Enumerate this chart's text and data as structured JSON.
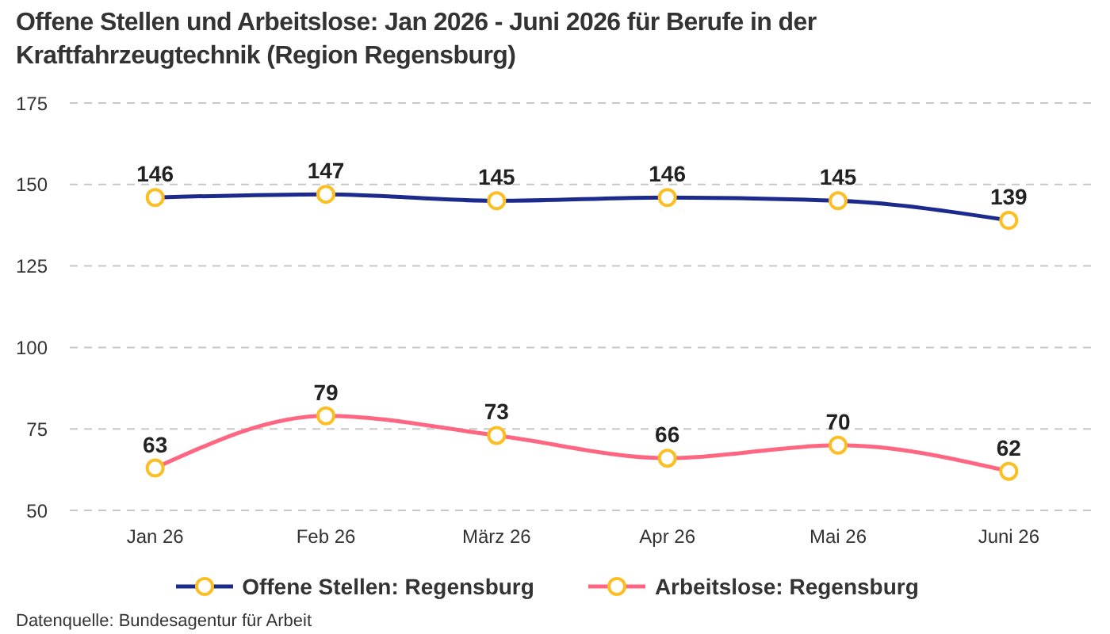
{
  "chart_data": {
    "type": "line",
    "title": "Offene Stellen und Arbeitslose: Jan 2026 - Juni 2026 für Berufe in der Kraftfahrzeugtechnik (Region Regensburg)",
    "categories": [
      "Jan 26",
      "Feb 26",
      "März 26",
      "Apr 26",
      "Mai 26",
      "Juni 26"
    ],
    "series": [
      {
        "name": "Offene Stellen: Regensburg",
        "color": "#1b2a8c",
        "values": [
          146,
          147,
          145,
          146,
          145,
          139
        ]
      },
      {
        "name": "Arbeitslose: Regensburg",
        "color": "#ff6682",
        "values": [
          63,
          79,
          73,
          66,
          70,
          62
        ]
      }
    ],
    "ylim": [
      50,
      175
    ],
    "yticks": [
      50,
      75,
      100,
      125,
      150,
      175
    ],
    "grid": "y",
    "legend": "bottom",
    "marker": "circle",
    "line_style": "solid",
    "data_labels": true,
    "annotations": [
      "Datenquelle: Bundesagentur für Arbeit"
    ]
  }
}
